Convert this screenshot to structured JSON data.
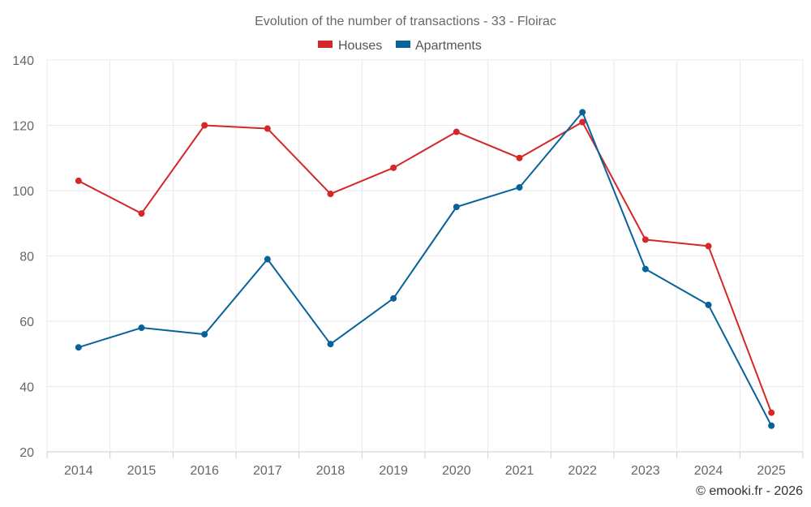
{
  "chart_data": {
    "type": "line",
    "title": "Evolution of the number of transactions - 33 - Floirac",
    "categories": [
      "2014",
      "2015",
      "2016",
      "2017",
      "2018",
      "2019",
      "2020",
      "2021",
      "2022",
      "2023",
      "2024",
      "2025"
    ],
    "series": [
      {
        "name": "Houses",
        "color": "#d62728",
        "values": [
          103,
          93,
          120,
          119,
          99,
          107,
          118,
          110,
          121,
          85,
          83,
          32
        ]
      },
      {
        "name": "Apartments",
        "color": "#08629a",
        "values": [
          52,
          58,
          56,
          79,
          53,
          67,
          95,
          101,
          124,
          76,
          65,
          28
        ]
      }
    ],
    "ylim": [
      20,
      140
    ],
    "yticks": [
      20,
      40,
      60,
      80,
      100,
      120,
      140
    ],
    "xlabel": "",
    "ylabel": "",
    "grid": true,
    "legend_position": "top-center"
  },
  "credit": "© emooki.fr - 2026"
}
